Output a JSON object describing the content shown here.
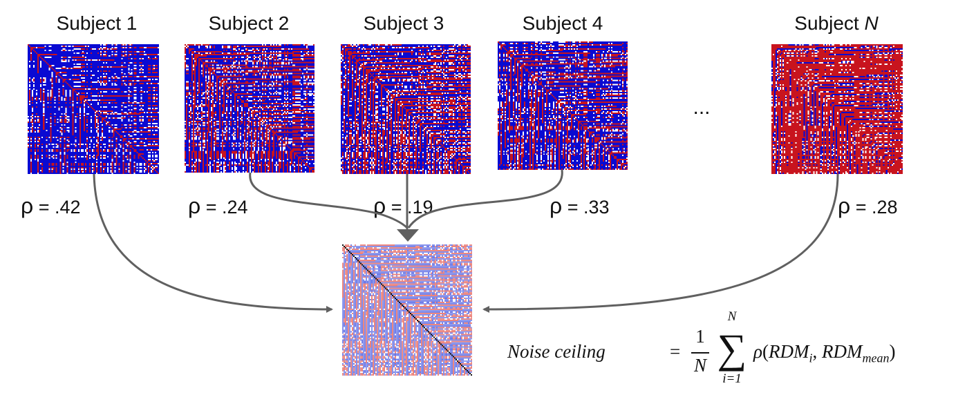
{
  "subjects": [
    {
      "label": "Subject 1",
      "rho": ".42",
      "tint": 0.78
    },
    {
      "label": "Subject 2",
      "rho": ".24",
      "tint": 0.62
    },
    {
      "label": "Subject 3",
      "rho": ".19",
      "tint": 0.58
    },
    {
      "label": "Subject 4",
      "rho": ".33",
      "tint": 0.66
    },
    {
      "label": "Subject ",
      "label_symbol": "N",
      "rho": ".28",
      "tint": 0.22
    }
  ],
  "rho_symbol": "ρ",
  "rho_equals": " = ",
  "ellipsis": "...",
  "formula": {
    "lhs": "Noise ceiling",
    "equals": "=",
    "fraction_numerator": "1",
    "fraction_denominator": "N",
    "sum_upper": "N",
    "sum_lower": "i=1",
    "sigma": "∑",
    "rho": "ρ",
    "open": "(",
    "rdm_i_base": "RDM",
    "rdm_i_sub": "i",
    "comma": ", ",
    "rdm_mean_base": "RDM",
    "rdm_mean_sub": "mean",
    "close": ")"
  },
  "colors": {
    "red": "#c8141e",
    "blue": "#0a0ad2",
    "white": "#ffffff",
    "arrow": "#606060",
    "mean_red": "#e8645a",
    "mean_blue": "#3c4ee0"
  }
}
